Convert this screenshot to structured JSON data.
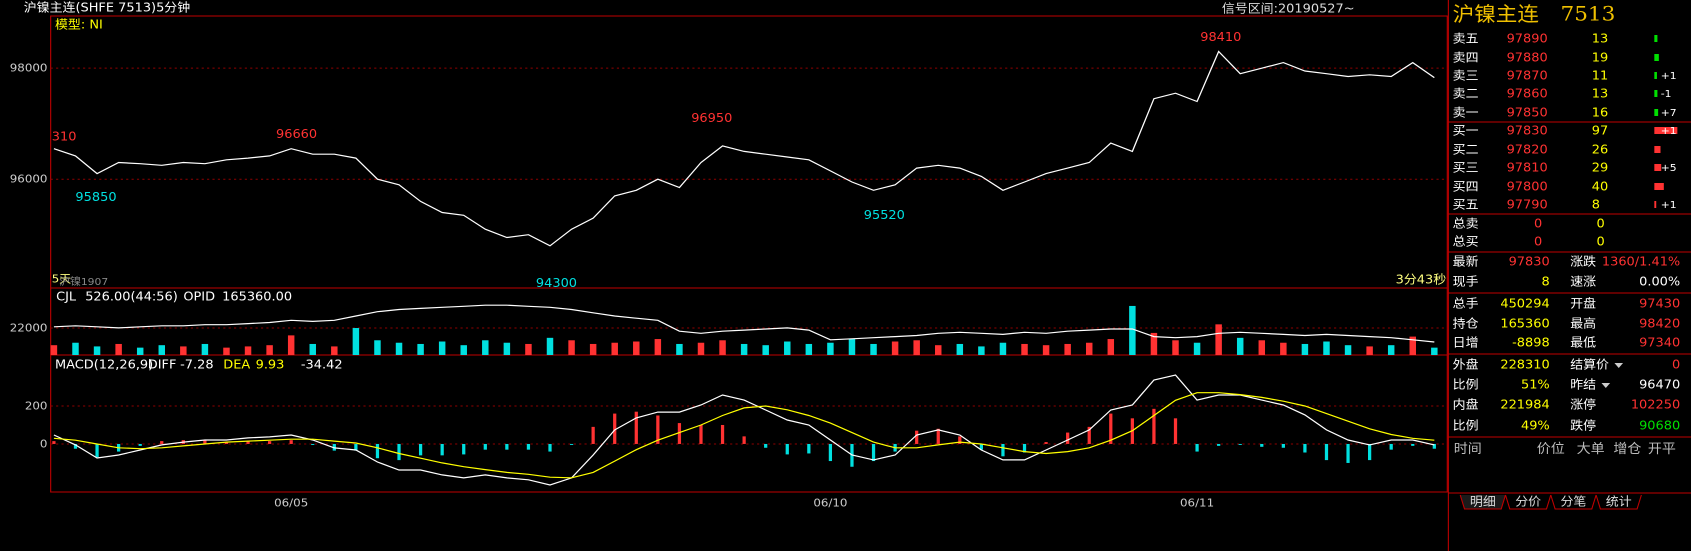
{
  "header": {
    "title": "沪镍主连(SHFE 7513)5分钟",
    "signal": "信号区间:20190527~"
  },
  "chart_data": [
    {
      "type": "line",
      "model": "模型: NI",
      "categories": [
        null,
        null,
        null,
        null,
        null,
        null,
        null,
        null,
        null,
        null,
        null,
        "06/05",
        null,
        null,
        null,
        null,
        null,
        null,
        null,
        null,
        null,
        null,
        null,
        null,
        null,
        null,
        null,
        null,
        null,
        null,
        null,
        null,
        null,
        null,
        null,
        null,
        "06/10",
        null,
        null,
        null,
        null,
        null,
        null,
        null,
        null,
        null,
        null,
        null,
        null,
        null,
        null,
        null,
        null,
        "06/11",
        null,
        null,
        null,
        null,
        null,
        null,
        null,
        null,
        null,
        null,
        null
      ],
      "series": [
        {
          "color": "#ffffff",
          "values": [
            96550,
            96420,
            96100,
            96300,
            96280,
            96250,
            96300,
            96280,
            96350,
            96380,
            96420,
            96550,
            96450,
            96450,
            96380,
            96000,
            95900,
            95600,
            95400,
            95350,
            95100,
            94950,
            95000,
            94800,
            95100,
            95300,
            95700,
            95800,
            96000,
            95850,
            96300,
            96600,
            96500,
            96450,
            96400,
            96350,
            96150,
            95950,
            95800,
            95900,
            96200,
            96250,
            96200,
            96050,
            95800,
            95950,
            96100,
            96200,
            96300,
            96650,
            96500,
            97450,
            97550,
            97400,
            98300,
            97900,
            98000,
            98100,
            97950,
            97900,
            97850,
            97880,
            97850,
            98100,
            97830
          ]
        }
      ],
      "ylim": [
        94040,
        98940
      ],
      "yticks": [
        96000,
        98000
      ],
      "grid": true,
      "price_labels": [
        "310",
        96660,
        96950,
        98410,
        95850,
        94300,
        95520
      ],
      "footer_left": [
        "5天",
        "沪镍1907"
      ],
      "footer_right": "3分43秒"
    },
    {
      "type": "bar",
      "up_color": "#ff3232",
      "down_color": "#00e0e0",
      "series": [
        {
          "name": "CJL",
          "color": "#ffffff",
          "readout": "526.00(44:56)",
          "values": [
            8000,
            10000,
            7000,
            9000,
            6000,
            8000,
            7000,
            9000,
            6000,
            7000,
            8000,
            16000,
            9000,
            7000,
            22000,
            12000,
            10000,
            9000,
            11000,
            8000,
            12000,
            10000,
            9000,
            14000,
            12000,
            9000,
            10000,
            11000,
            13000,
            9000,
            10000,
            12000,
            9000,
            8000,
            11000,
            9000,
            10000,
            13000,
            9000,
            11000,
            12000,
            8000,
            9000,
            7000,
            10000,
            9000,
            8000,
            9000,
            10000,
            13000,
            40000,
            18000,
            12000,
            10000,
            25000,
            14000,
            12000,
            10000,
            9000,
            11000,
            8000,
            7000,
            8000,
            15000,
            6000
          ]
        },
        {
          "name": "OPID",
          "color": "#ffffff",
          "readout": "165360.00",
          "axis": "y2",
          "values": [
            163000,
            163500,
            163000,
            162500,
            163000,
            163500,
            163500,
            164000,
            164000,
            164500,
            165000,
            166000,
            165500,
            166000,
            168000,
            170000,
            171000,
            171500,
            172000,
            172500,
            173000,
            173000,
            172500,
            172000,
            171000,
            169500,
            168000,
            167000,
            166000,
            161000,
            160000,
            161000,
            161500,
            162000,
            162500,
            161500,
            157000,
            157500,
            158000,
            158500,
            159000,
            160000,
            160500,
            160000,
            159500,
            160500,
            160000,
            161000,
            161500,
            162000,
            162000,
            158500,
            158000,
            158500,
            160000,
            160500,
            160000,
            159500,
            159000,
            159500,
            159000,
            158500,
            158000,
            157000,
            156000
          ]
        }
      ],
      "ylim": [
        0,
        53000
      ],
      "yticks": [
        22000
      ],
      "y2lim": [
        150000,
        180000
      ],
      "grid": true
    },
    {
      "type": "macd",
      "title": "MACD(12,26,9)",
      "series": [
        {
          "name": "DIFF",
          "color": "#ffffff",
          "readout": -7.28,
          "values": [
            47,
            -5,
            -74,
            -58,
            -32,
            -5,
            10,
            21,
            21,
            32,
            37,
            47,
            21,
            -21,
            -32,
            -95,
            -137,
            -137,
            -163,
            -179,
            -163,
            -179,
            -189,
            -216,
            -179,
            -58,
            74,
            137,
            168,
            168,
            205,
            258,
            231,
            179,
            126,
            100,
            21,
            -58,
            -84,
            -58,
            47,
            74,
            47,
            -32,
            -84,
            -84,
            -32,
            21,
            74,
            179,
            205,
            337,
            363,
            231,
            258,
            258,
            231,
            205,
            153,
            74,
            21,
            -5,
            21,
            21,
            -5
          ]
        },
        {
          "name": "DEA",
          "color": "#ffff00",
          "readout": 9.93,
          "values": [
            30,
            20,
            0,
            -20,
            -25,
            -20,
            -10,
            0,
            10,
            15,
            20,
            25,
            25,
            15,
            5,
            -20,
            -50,
            -75,
            -100,
            -120,
            -135,
            -150,
            -160,
            -175,
            -178,
            -150,
            -90,
            -30,
            20,
            60,
            100,
            150,
            190,
            200,
            180,
            150,
            110,
            60,
            10,
            -20,
            -20,
            -5,
            10,
            0,
            -20,
            -40,
            -50,
            -40,
            -20,
            20,
            70,
            150,
            230,
            270,
            270,
            260,
            245,
            225,
            200,
            160,
            120,
            80,
            50,
            30,
            20
          ]
        }
      ],
      "histogram": {
        "readout": -34.42,
        "up_color": "#ff3232",
        "down_color": "#00e0e0",
        "values": [
          15,
          -25,
          -70,
          -40,
          -10,
          15,
          20,
          20,
          10,
          15,
          15,
          20,
          -5,
          -35,
          -35,
          -75,
          -85,
          -60,
          -60,
          -55,
          -30,
          -30,
          -30,
          -40,
          -5,
          90,
          160,
          170,
          150,
          110,
          100,
          100,
          40,
          -20,
          -55,
          -50,
          -90,
          -120,
          -90,
          -40,
          70,
          80,
          40,
          -30,
          -65,
          -45,
          10,
          60,
          90,
          160,
          135,
          185,
          135,
          -40,
          -10,
          -5,
          -15,
          -20,
          -45,
          -85,
          -100,
          -85,
          -30,
          -10,
          -25
        ]
      },
      "ylim": [
        -253,
        458
      ],
      "yticks": [
        0,
        200
      ],
      "grid": true
    }
  ],
  "quote": {
    "name": "沪镍主连",
    "code": "7513",
    "book": [
      {
        "label": "卖五",
        "price": 97890,
        "vol": 13
      },
      {
        "label": "卖四",
        "price": 97880,
        "vol": 19
      },
      {
        "label": "卖三",
        "price": 97870,
        "vol": 11,
        "change": "+1"
      },
      {
        "label": "卖二",
        "price": 97860,
        "vol": 13,
        "change": "-1"
      },
      {
        "label": "卖一",
        "price": 97850,
        "vol": 16,
        "change": "+7"
      },
      {
        "label": "买一",
        "price": 97830,
        "vol": 97,
        "change": "+1"
      },
      {
        "label": "买二",
        "price": 97820,
        "vol": 26
      },
      {
        "label": "买三",
        "price": 97810,
        "vol": 29,
        "change": "+5"
      },
      {
        "label": "买四",
        "price": 97800,
        "vol": 40
      },
      {
        "label": "买五",
        "price": 97790,
        "vol": 8,
        "change": "+1"
      }
    ],
    "totals": [
      {
        "label": "总卖",
        "price": 0,
        "vol": 0
      },
      {
        "label": "总买",
        "price": 0,
        "vol": 0
      }
    ],
    "stats": [
      [
        {
          "label": "最新",
          "value": 97830
        },
        {
          "label": "涨跌",
          "value": "1360/1.41%"
        }
      ],
      [
        {
          "label": "现手",
          "value": 8
        },
        {
          "label": "速涨",
          "value": "0.00%"
        }
      ],
      [
        {
          "label": "总手",
          "value": 450294
        },
        {
          "label": "开盘",
          "value": 97430
        }
      ],
      [
        {
          "label": "持仓",
          "value": 165360
        },
        {
          "label": "最高",
          "value": 98420
        }
      ],
      [
        {
          "label": "日增",
          "value": -8898
        },
        {
          "label": "最低",
          "value": 97340
        }
      ],
      [
        {
          "label": "外盘",
          "value": 228310
        },
        {
          "label": "结算价",
          "value": 0
        }
      ],
      [
        {
          "label": "比例",
          "value": "51%"
        },
        {
          "label": "昨结",
          "value": 96470
        }
      ],
      [
        {
          "label": "内盘",
          "value": 221984
        },
        {
          "label": "涨停",
          "value": 102250
        }
      ],
      [
        {
          "label": "比例",
          "value": "49%"
        },
        {
          "label": "跌停",
          "value": 90680
        }
      ]
    ],
    "columns": [
      "时间",
      "价位",
      "大单",
      "增仓",
      "开平"
    ],
    "tabs": [
      "明细",
      "分价",
      "分笔",
      "统计"
    ]
  }
}
